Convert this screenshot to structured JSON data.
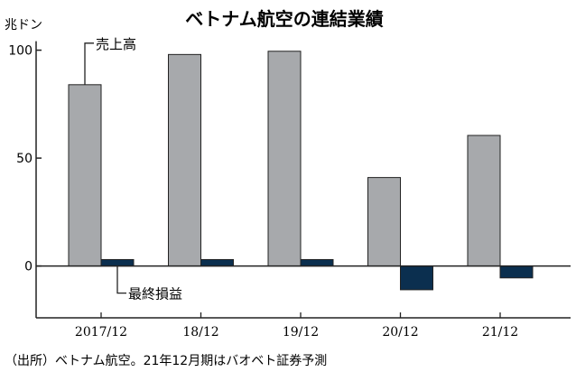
{
  "chart_data": {
    "type": "bar",
    "title": "ベトナム航空の連結業績",
    "unit": "兆ドン",
    "categories": [
      "2017/12",
      "18/12",
      "19/12",
      "20/12",
      "21/12"
    ],
    "series": [
      {
        "name": "売上高",
        "values": [
          84,
          98,
          99.5,
          41,
          60.5
        ],
        "color": "#a7a9ac"
      },
      {
        "name": "最終損益",
        "values": [
          3,
          3,
          3,
          -11,
          -5.5
        ],
        "color": "#0b2f4f"
      }
    ],
    "ylim": [
      -24,
      104
    ],
    "yticks": [
      0,
      50,
      100
    ],
    "grid": false,
    "legend": "inline-annotations",
    "source": "（出所）ベトナム航空。21年12月期はバオベト証券予測"
  }
}
